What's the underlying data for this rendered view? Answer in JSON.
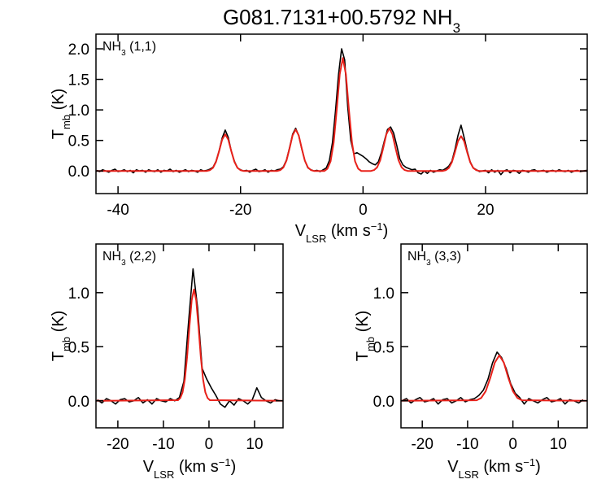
{
  "chart_data": [
    {
      "type": "line",
      "title": [
        {
          "text": "G081.7131+00.5792 NH"
        },
        {
          "text": "3",
          "shift": "sub"
        }
      ],
      "annotation": [
        {
          "text": "NH"
        },
        {
          "text": "3",
          "shift": "sub"
        },
        {
          "text": " (1,1)"
        }
      ],
      "xlabel": [
        {
          "text": "V"
        },
        {
          "text": "LSR",
          "shift": "sub"
        },
        {
          "text": " (km s"
        },
        {
          "text": "−1",
          "shift": "super"
        },
        {
          "text": ")"
        }
      ],
      "ylabel": [
        {
          "text": "T"
        },
        {
          "text": "mb",
          "shift": "sub"
        },
        {
          "text": " (K)"
        }
      ],
      "xlim": [
        -43.6,
        36.6
      ],
      "ylim": [
        -0.37,
        2.24
      ],
      "xticks": [
        -40,
        -20,
        0,
        20
      ],
      "yticks": [
        {
          "value": 0,
          "label": "0.0"
        },
        0.5,
        {
          "value": 1,
          "label": "1.0"
        },
        1.5,
        {
          "value": 2,
          "label": "2.0"
        }
      ],
      "series": [
        {
          "color": "#000000",
          "x": [
            -43.5,
            -43,
            -42.5,
            -42,
            -41.5,
            -41,
            -40.5,
            -40,
            -39.5,
            -39,
            -38.5,
            -38,
            -37.5,
            -37,
            -36.5,
            -36,
            -35.5,
            -35,
            -34.5,
            -34,
            -33.5,
            -33,
            -32.5,
            -32,
            -31.5,
            -31,
            -30.5,
            -30,
            -29.5,
            -29,
            -28.5,
            -28,
            -27.5,
            -27,
            -26.5,
            -26,
            -25.5,
            -25,
            -24.5,
            -24,
            -23.5,
            -23,
            -22.5,
            -22,
            -21.5,
            -21,
            -20.5,
            -20,
            -19.5,
            -19,
            -18.5,
            -18,
            -17.5,
            -17,
            -16.5,
            -16,
            -15.5,
            -15,
            -14.5,
            -14,
            -13.5,
            -13,
            -12.5,
            -12,
            -11.5,
            -11,
            -10.5,
            -10,
            -9.5,
            -9,
            -8.5,
            -8,
            -7.5,
            -7,
            -6.5,
            -6,
            -5.5,
            -5,
            -4.5,
            -4,
            -3.5,
            -3,
            -2.5,
            -2,
            -1.5,
            -1,
            -0.5,
            0,
            0.5,
            1,
            1.5,
            2,
            2.5,
            3,
            3.5,
            4,
            4.5,
            5,
            5.5,
            6,
            6.5,
            7,
            7.5,
            8,
            8.5,
            9,
            9.5,
            10,
            10.5,
            11,
            11.5,
            12,
            12.5,
            13,
            13.5,
            14,
            14.5,
            15,
            15.5,
            16,
            16.5,
            17,
            17.5,
            18,
            18.5,
            19,
            19.5,
            20,
            20.5,
            21,
            21.5,
            22,
            22.5,
            23,
            23.5,
            24,
            24.5,
            25,
            25.5,
            26,
            26.5,
            27,
            27.5,
            28,
            28.5,
            29,
            29.5,
            30,
            30.5,
            31,
            31.5,
            32,
            32.5,
            33,
            33.5,
            34,
            34.5,
            35,
            35.5,
            36,
            36.5
          ],
          "values": [
            0.01,
            -0.01,
            0.02,
            0.0,
            -0.02,
            0.01,
            0.03,
            -0.01,
            0.0,
            0.02,
            -0.01,
            0.01,
            -0.03,
            0.02,
            0.0,
            0.01,
            -0.02,
            0.02,
            0.0,
            -0.01,
            0.02,
            -0.02,
            0.01,
            0.0,
            0.03,
            -0.01,
            0.01,
            -0.02,
            0.0,
            0.02,
            -0.01,
            0.01,
            0.0,
            -0.02,
            0.02,
            0.0,
            0.01,
            0.03,
            0.06,
            0.16,
            0.33,
            0.54,
            0.67,
            0.55,
            0.32,
            0.16,
            0.05,
            0.02,
            0.0,
            0.01,
            -0.02,
            0.01,
            0.03,
            -0.01,
            0.0,
            0.02,
            -0.02,
            0.01,
            0.0,
            0.02,
            0.03,
            0.07,
            0.18,
            0.38,
            0.6,
            0.7,
            0.58,
            0.36,
            0.17,
            0.05,
            0.02,
            0.0,
            0.01,
            -0.01,
            0.02,
            0.05,
            0.17,
            0.46,
            0.98,
            1.58,
            2.0,
            1.82,
            1.05,
            0.5,
            0.28,
            0.3,
            0.27,
            0.24,
            0.2,
            0.15,
            0.12,
            0.1,
            0.15,
            0.3,
            0.5,
            0.68,
            0.72,
            0.62,
            0.42,
            0.2,
            0.1,
            0.06,
            0.04,
            0.02,
            0.03,
            -0.03,
            -0.05,
            0.0,
            -0.04,
            0.01,
            -0.02,
            0.0,
            0.02,
            0.01,
            0.04,
            0.08,
            0.16,
            0.35,
            0.58,
            0.75,
            0.55,
            0.33,
            0.15,
            0.05,
            0.02,
            -0.01,
            0.0,
            0.01,
            -0.03,
            0.02,
            -0.02,
            0.01,
            -0.06,
            0.0,
            0.02,
            -0.03,
            0.01,
            0.0,
            -0.04,
            0.01,
            0.0,
            -0.02,
            0.01,
            0.02,
            -0.01,
            0.0,
            0.01,
            -0.02,
            0.0,
            0.01,
            -0.01,
            0.02,
            0.0,
            -0.01,
            0.01,
            -0.02,
            0.0,
            0.01,
            -0.01,
            0.0,
            0.01
          ]
        },
        {
          "color": "#e8211a",
          "x": [
            -43.6,
            -25.5,
            -25,
            -24.5,
            -24,
            -23.5,
            -23,
            -22.5,
            -22,
            -21.5,
            -21,
            -20.5,
            -20,
            -19.5,
            -14,
            -13.5,
            -13,
            -12.5,
            -12,
            -11.5,
            -11,
            -10.5,
            -10,
            -9.5,
            -9,
            -8.5,
            -8,
            -6.3,
            -5.8,
            -5.3,
            -4.8,
            -4.3,
            -3.8,
            -3.3,
            -2.8,
            -2.3,
            -1.8,
            -1.3,
            -0.8,
            -0.3,
            1.3,
            1.8,
            2.3,
            2.8,
            3.3,
            3.8,
            4.3,
            4.8,
            5.3,
            5.8,
            6.3,
            6.8,
            7.3,
            13,
            13.5,
            14,
            14.5,
            15,
            15.5,
            16,
            16.5,
            17,
            17.5,
            18,
            18.5,
            19,
            36.6
          ],
          "values": [
            0,
            0,
            0.013,
            0.051,
            0.15,
            0.323,
            0.514,
            0.6,
            0.514,
            0.323,
            0.15,
            0.051,
            0.013,
            0,
            0,
            0.014,
            0.058,
            0.169,
            0.367,
            0.583,
            0.68,
            0.583,
            0.367,
            0.169,
            0.058,
            0.014,
            0,
            0,
            0.039,
            0.157,
            0.461,
            0.997,
            1.585,
            1.85,
            1.585,
            0.997,
            0.461,
            0.157,
            0.039,
            0,
            0,
            0.015,
            0.06,
            0.174,
            0.377,
            0.6,
            0.7,
            0.6,
            0.377,
            0.174,
            0.06,
            0.015,
            0,
            0,
            0.012,
            0.048,
            0.142,
            0.307,
            0.488,
            0.57,
            0.488,
            0.307,
            0.142,
            0.048,
            0.012,
            0,
            0
          ]
        }
      ]
    },
    {
      "type": "line",
      "annotation": [
        {
          "text": "NH"
        },
        {
          "text": "3",
          "shift": "sub"
        },
        {
          "text": " (2,2)"
        }
      ],
      "xlabel": [
        {
          "text": "V"
        },
        {
          "text": "LSR",
          "shift": "sub"
        },
        {
          "text": " (km s"
        },
        {
          "text": "−1",
          "shift": "super"
        },
        {
          "text": ")"
        }
      ],
      "ylabel": [
        {
          "text": "T"
        },
        {
          "text": "mb",
          "shift": "sub"
        },
        {
          "text": " (K)"
        }
      ],
      "xlim": [
        -24.8,
        16.25
      ],
      "ylim": [
        -0.25,
        1.45
      ],
      "xticks": [
        -20,
        -10,
        0,
        10
      ],
      "yticks": [
        {
          "value": 0,
          "label": "0.0"
        },
        0.5,
        {
          "value": 1,
          "label": "1.0"
        }
      ],
      "series": [
        {
          "color": "#000000",
          "x": [
            -24.5,
            -23.5,
            -22.5,
            -21.5,
            -20.5,
            -19.5,
            -18.5,
            -17.5,
            -16.5,
            -15.5,
            -14.5,
            -13.5,
            -12.5,
            -11.5,
            -10.5,
            -9.5,
            -8.5,
            -7.5,
            -6.5,
            -5.5,
            -4.5,
            -3.5,
            -2.5,
            -1.5,
            -0.5,
            0.5,
            1.5,
            2.5,
            3.5,
            4.5,
            5.5,
            6.5,
            7.5,
            8.5,
            9.5,
            10.5,
            11.5,
            12.5,
            13.5,
            14.5,
            15.5
          ],
          "values": [
            0.01,
            -0.02,
            0.02,
            0.0,
            -0.03,
            0.01,
            0.02,
            -0.01,
            0.0,
            0.03,
            -0.02,
            0.01,
            -0.03,
            0.02,
            0.0,
            -0.01,
            0.02,
            0.0,
            0.03,
            0.18,
            0.72,
            1.22,
            0.86,
            0.3,
            0.2,
            0.12,
            0.05,
            -0.03,
            -0.06,
            0.0,
            -0.04,
            0.02,
            0.0,
            -0.03,
            0.01,
            0.12,
            0.03,
            0.0,
            -0.02,
            0.01,
            0.0
          ]
        },
        {
          "color": "#e8211a",
          "x": [
            -24.8,
            -6.8,
            -6.3,
            -5.8,
            -5.3,
            -4.8,
            -4.3,
            -3.8,
            -3.3,
            -2.8,
            -2.3,
            -1.8,
            -1.3,
            -0.8,
            -0.3,
            0.2,
            16.25
          ],
          "values": [
            0,
            0.006,
            0.025,
            0.078,
            0.198,
            0.407,
            0.682,
            0.929,
            1.03,
            0.929,
            0.682,
            0.407,
            0.198,
            0.078,
            0.025,
            0.006,
            0
          ]
        }
      ]
    },
    {
      "type": "line",
      "annotation": [
        {
          "text": "NH"
        },
        {
          "text": "3",
          "shift": "sub"
        },
        {
          "text": " (3,3)"
        }
      ],
      "xlabel": [
        {
          "text": "V"
        },
        {
          "text": "LSR",
          "shift": "sub"
        },
        {
          "text": " (km s"
        },
        {
          "text": "−1",
          "shift": "super"
        },
        {
          "text": ")"
        }
      ],
      "ylabel": [
        {
          "text": "T"
        },
        {
          "text": "mb",
          "shift": "sub"
        },
        {
          "text": " (K)"
        }
      ],
      "xlim": [
        -24.7,
        16.4
      ],
      "ylim": [
        -0.25,
        1.45
      ],
      "xticks": [
        -20,
        -10,
        0,
        10
      ],
      "yticks": [
        {
          "value": 0,
          "label": "0.0"
        },
        0.5,
        {
          "value": 1,
          "label": "1.0"
        }
      ],
      "series": [
        {
          "color": "#000000",
          "x": [
            -24.5,
            -23.5,
            -22.5,
            -21.5,
            -20.5,
            -19.5,
            -18.5,
            -17.5,
            -16.5,
            -15.5,
            -14.5,
            -13.5,
            -12.5,
            -11.5,
            -10.5,
            -9.5,
            -8.5,
            -7.5,
            -6.5,
            -5.5,
            -4.5,
            -3.5,
            -2.5,
            -1.5,
            -0.5,
            0.5,
            1.5,
            2.5,
            3.5,
            4.5,
            5.5,
            6.5,
            7.5,
            8.5,
            9.5,
            10.5,
            11.5,
            12.5,
            13.5,
            14.5,
            15.5
          ],
          "values": [
            0.0,
            0.02,
            -0.02,
            0.01,
            0.03,
            -0.01,
            0.0,
            0.02,
            -0.03,
            0.01,
            0.02,
            -0.02,
            0.0,
            0.03,
            -0.01,
            0.01,
            0.02,
            0.05,
            0.1,
            0.2,
            0.35,
            0.45,
            0.4,
            0.3,
            0.16,
            0.07,
            0.03,
            -0.03,
            0.02,
            0.0,
            -0.02,
            0.01,
            0.03,
            -0.01,
            0.0,
            0.02,
            -0.03,
            0.01,
            0.0,
            -0.02,
            0.01
          ]
        },
        {
          "color": "#e8211a",
          "x": [
            -24.7,
            -8,
            -7,
            -6,
            -5,
            -4,
            -3,
            -2,
            -1,
            0,
            1,
            2,
            16.4
          ],
          "values": [
            0,
            0.005,
            0.026,
            0.089,
            0.21,
            0.353,
            0.42,
            0.353,
            0.21,
            0.089,
            0.026,
            0.005,
            0
          ]
        }
      ]
    }
  ]
}
